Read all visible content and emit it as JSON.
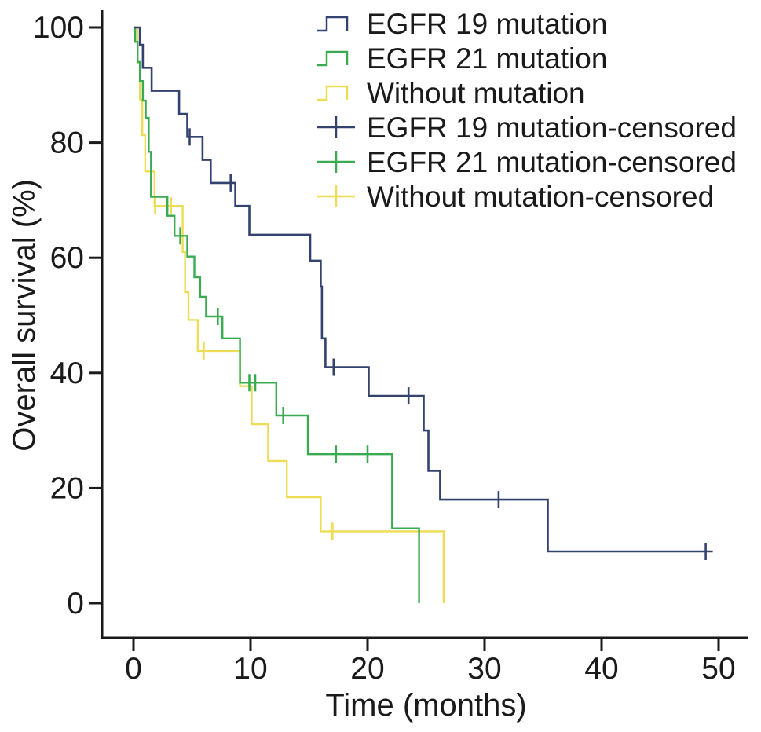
{
  "chart_data": {
    "type": "line",
    "variant": "kaplan_meier_step",
    "title": "",
    "xlabel": "Time (months)",
    "ylabel": "Overall survival (%)",
    "xlim": [
      -2.7,
      53.5
    ],
    "ylim": [
      -6,
      106
    ],
    "x_ticks": [
      0,
      10,
      20,
      30,
      40,
      50
    ],
    "y_ticks": [
      0,
      20,
      40,
      60,
      80,
      100
    ],
    "grid": false,
    "background": "#ffffff",
    "axis_color": "#1a1a1a",
    "legend_position": "top-right-inside",
    "legend": [
      {
        "label": "EGFR 19 mutation",
        "marker": "step",
        "color": "#344270"
      },
      {
        "label": "EGFR 21 mutation",
        "marker": "step",
        "color": "#3AAB51"
      },
      {
        "label": "Without mutation",
        "marker": "step",
        "color": "#EFDC55"
      },
      {
        "label": "EGFR 19 mutation-censored",
        "marker": "plus",
        "color": "#344270"
      },
      {
        "label": "EGFR 21 mutation-censored",
        "marker": "plus",
        "color": "#3AAB51"
      },
      {
        "label": "Without mutation-censored",
        "marker": "plus",
        "color": "#EFDC55"
      }
    ],
    "series": [
      {
        "name": "EGFR 19 mutation",
        "color": "#344270",
        "start": [
          0,
          100
        ],
        "steps": [
          [
            0.55,
            97
          ],
          [
            0.8,
            93
          ],
          [
            1.55,
            89
          ],
          [
            3.9,
            85
          ],
          [
            4.6,
            81
          ],
          [
            5.9,
            77
          ],
          [
            6.6,
            73
          ],
          [
            8.7,
            69
          ],
          [
            9.9,
            64
          ],
          [
            15.1,
            59.5
          ],
          [
            16.0,
            55
          ],
          [
            16.1,
            46
          ],
          [
            16.4,
            41
          ],
          [
            20.1,
            36
          ],
          [
            24.8,
            30
          ],
          [
            25.2,
            23
          ],
          [
            26.2,
            18
          ],
          [
            35.4,
            9
          ]
        ],
        "end_time": 49.5,
        "censored": [
          [
            4.8,
            81
          ],
          [
            8.3,
            73
          ],
          [
            17.1,
            41
          ],
          [
            23.5,
            36
          ],
          [
            31.2,
            18
          ],
          [
            48.9,
            9
          ]
        ]
      },
      {
        "name": "EGFR 21 mutation",
        "color": "#3AAB51",
        "start": [
          0,
          100
        ],
        "steps": [
          [
            0.15,
            97.5
          ],
          [
            0.35,
            94
          ],
          [
            0.55,
            90.7
          ],
          [
            0.8,
            87.3
          ],
          [
            1.05,
            84.3
          ],
          [
            1.3,
            78.4
          ],
          [
            1.5,
            70.6
          ],
          [
            2.9,
            67.3
          ],
          [
            3.5,
            63.8
          ],
          [
            4.6,
            60.2
          ],
          [
            5.2,
            56.6
          ],
          [
            5.7,
            53.2
          ],
          [
            6.2,
            49.8
          ],
          [
            7.6,
            46
          ],
          [
            9.1,
            38.3
          ],
          [
            12.2,
            32.6
          ],
          [
            14.9,
            25.9
          ],
          [
            22.1,
            13
          ],
          [
            24.4,
            0
          ]
        ],
        "end_time": 24.4,
        "censored": [
          [
            4.0,
            63.8
          ],
          [
            7.2,
            49.8
          ],
          [
            9.9,
            38.3
          ],
          [
            10.4,
            38.3
          ],
          [
            12.8,
            32.6
          ],
          [
            17.3,
            25.9
          ],
          [
            20.0,
            25.9
          ]
        ]
      },
      {
        "name": "Without mutation",
        "color": "#EFDC55",
        "start": [
          0,
          100
        ],
        "steps": [
          [
            0.35,
            93.8
          ],
          [
            0.55,
            87.5
          ],
          [
            0.75,
            81.3
          ],
          [
            1.0,
            75
          ],
          [
            1.8,
            69
          ],
          [
            4.2,
            61
          ],
          [
            4.4,
            54
          ],
          [
            4.7,
            49.2
          ],
          [
            5.5,
            43.8
          ],
          [
            9.1,
            37.7
          ],
          [
            10.1,
            31.1
          ],
          [
            11.5,
            24.7
          ],
          [
            13.1,
            18.4
          ],
          [
            16.0,
            12.5
          ],
          [
            26.5,
            0
          ]
        ],
        "end_time": 26.5,
        "censored": [
          [
            1.85,
            69
          ],
          [
            3.2,
            69
          ],
          [
            6.0,
            43.8
          ],
          [
            17.0,
            12.5
          ]
        ]
      }
    ]
  }
}
